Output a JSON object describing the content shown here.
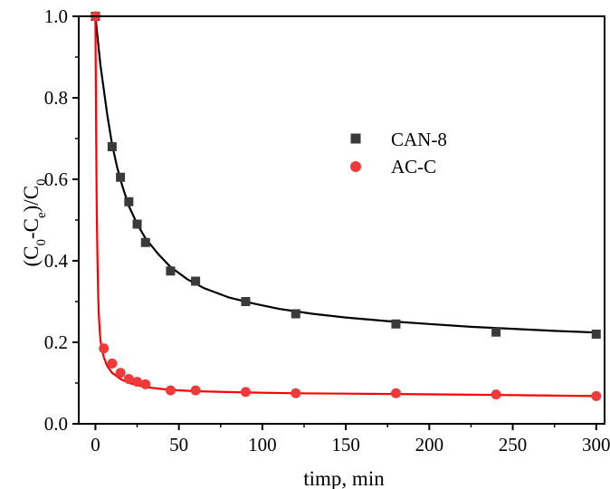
{
  "chart_data": {
    "type": "scatter",
    "xlabel": "timp, min",
    "ylabel": "(C0-Ce)/C0",
    "ylabel_parts": {
      "open": "(C",
      "sub1": "0",
      "minus": "-C",
      "sub2": "e",
      "close": ")/C",
      "sub3": "0"
    },
    "xlim": [
      -10,
      305
    ],
    "ylim": [
      0,
      1.0
    ],
    "xticks": [
      0,
      50,
      100,
      150,
      200,
      250,
      300
    ],
    "xtick_labels": [
      "0",
      "50",
      "100",
      "150",
      "200",
      "250",
      "300"
    ],
    "yticks": [
      0.0,
      0.2,
      0.4,
      0.6,
      0.8,
      1.0
    ],
    "ytick_labels": [
      "0.0",
      "0.2",
      "0.4",
      "0.6",
      "0.8",
      "1.0"
    ],
    "grid": false,
    "legend_position": "upper-right",
    "series": [
      {
        "name": "CAN-8",
        "marker": "square",
        "color": "#3a3a3a",
        "fit_color": "#000000",
        "x": [
          0,
          10,
          15,
          20,
          25,
          30,
          45,
          60,
          90,
          120,
          180,
          240,
          300
        ],
        "y": [
          1.0,
          0.68,
          0.605,
          0.545,
          0.49,
          0.445,
          0.375,
          0.35,
          0.3,
          0.27,
          0.245,
          0.225,
          0.22
        ],
        "fit": {
          "x": [
            0,
            1,
            2,
            3,
            5,
            7,
            10,
            13,
            16,
            20,
            25,
            30,
            38,
            45,
            55,
            65,
            80,
            95,
            110,
            130,
            150,
            175,
            200,
            225,
            250,
            275,
            300
          ],
          "y": [
            1.0,
            0.96,
            0.92,
            0.88,
            0.82,
            0.76,
            0.685,
            0.63,
            0.585,
            0.535,
            0.49,
            0.455,
            0.415,
            0.385,
            0.355,
            0.333,
            0.31,
            0.295,
            0.282,
            0.27,
            0.261,
            0.252,
            0.245,
            0.238,
            0.233,
            0.228,
            0.224
          ]
        }
      },
      {
        "name": "AC-C",
        "marker": "circle",
        "color": "#ee3a3a",
        "fit_color": "#ff0000",
        "x": [
          0,
          5,
          10,
          15,
          20,
          25,
          30,
          45,
          60,
          90,
          120,
          180,
          240,
          300
        ],
        "y": [
          1.0,
          0.185,
          0.148,
          0.125,
          0.11,
          0.103,
          0.097,
          0.082,
          0.082,
          0.078,
          0.075,
          0.075,
          0.072,
          0.068
        ],
        "fit": {
          "x": [
            0,
            0.4,
            0.8,
            1.2,
            1.6,
            2,
            2.5,
            3,
            4,
            5,
            7,
            10,
            15,
            20,
            30,
            45,
            60,
            90,
            120,
            180,
            240,
            300
          ],
          "y": [
            1.0,
            0.72,
            0.52,
            0.4,
            0.32,
            0.27,
            0.23,
            0.205,
            0.18,
            0.163,
            0.142,
            0.125,
            0.11,
            0.1,
            0.09,
            0.083,
            0.08,
            0.077,
            0.075,
            0.073,
            0.071,
            0.068
          ]
        }
      }
    ]
  }
}
